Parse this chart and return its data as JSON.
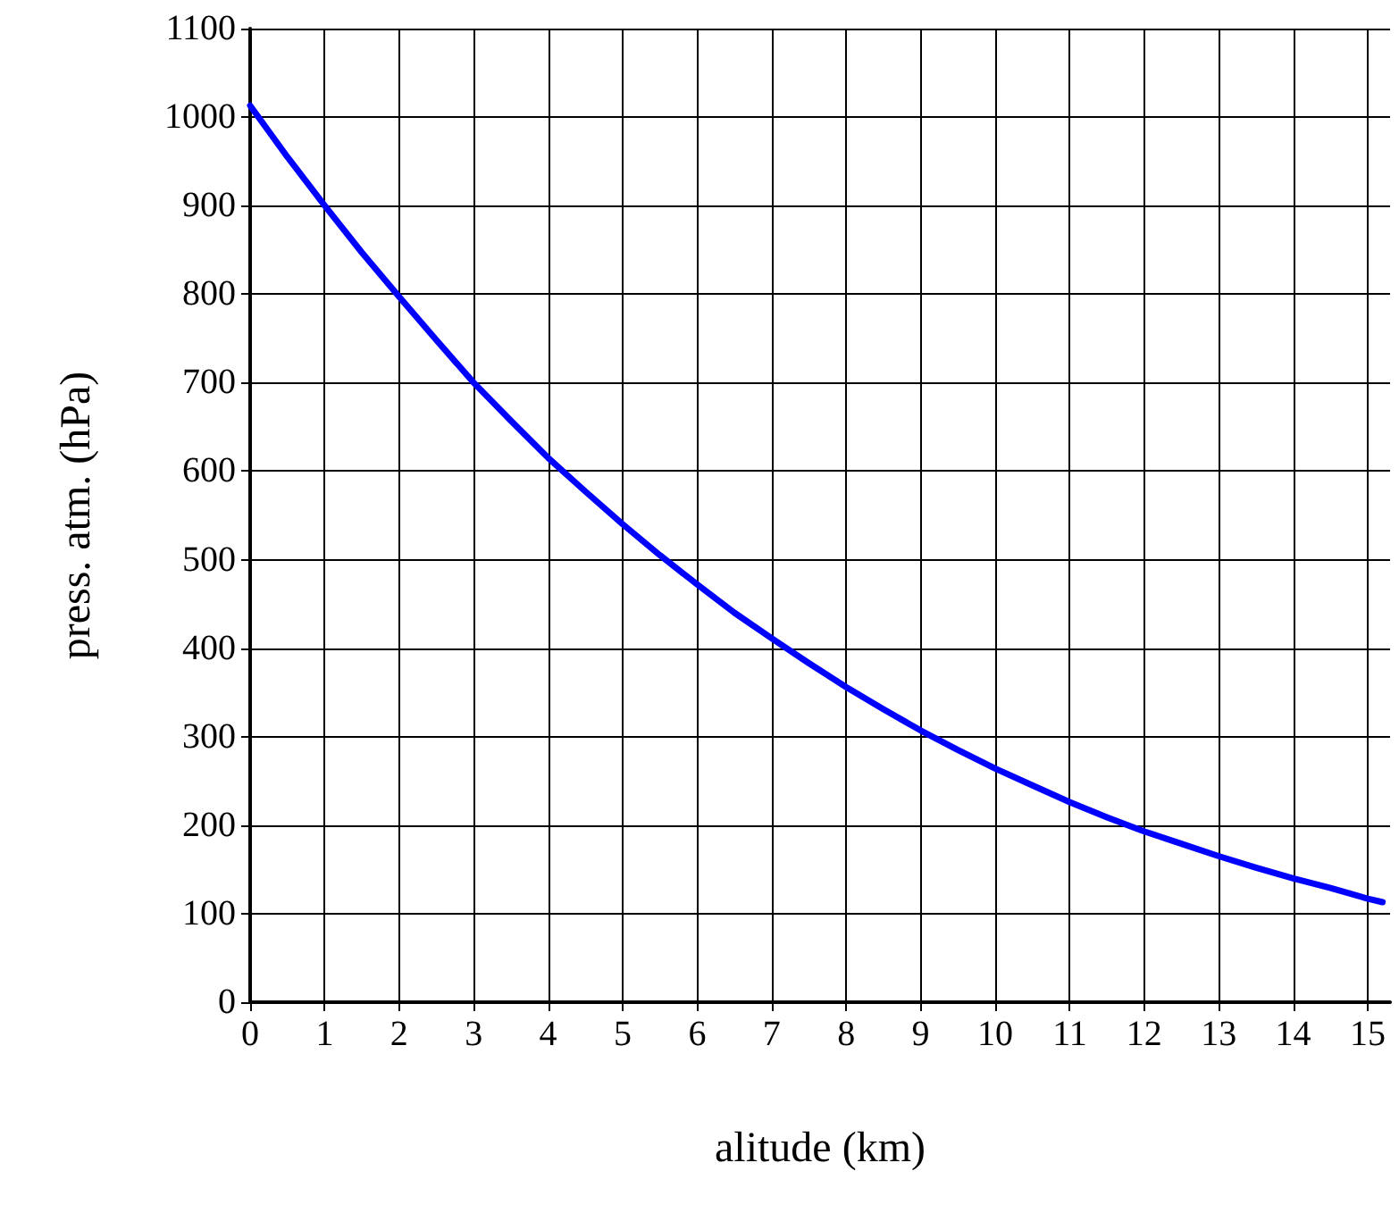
{
  "chart_data": {
    "type": "line",
    "xlabel": "alitude (km)",
    "ylabel": "press. atm. (hPa)",
    "x": [
      0,
      0.5,
      1,
      1.5,
      2,
      2.5,
      3,
      3.5,
      4,
      4.5,
      5,
      5.5,
      6,
      6.5,
      7,
      7.5,
      8,
      8.5,
      9,
      9.5,
      10,
      10.5,
      11,
      11.5,
      12,
      12.5,
      13,
      13.5,
      14,
      14.5,
      15,
      15.2
    ],
    "series": [
      {
        "color": "#0000ff",
        "values": [
          1013,
          955,
          900,
          847,
          797,
          748,
          700,
          657,
          615,
          577,
          540,
          505,
          472,
          440,
          411,
          383,
          356,
          331,
          307,
          285,
          264,
          245,
          226,
          209,
          193,
          179,
          165,
          152,
          140,
          129,
          117,
          113
        ]
      }
    ],
    "xlim": [
      0,
      15.3
    ],
    "ylim": [
      0,
      1100
    ],
    "xticks": [
      0,
      1,
      2,
      3,
      4,
      5,
      6,
      7,
      8,
      9,
      10,
      11,
      12,
      13,
      14,
      15
    ],
    "yticks": [
      0,
      100,
      200,
      300,
      400,
      500,
      600,
      700,
      800,
      900,
      1000,
      1100
    ],
    "grid": true,
    "marker": "none",
    "line_style": "solid"
  }
}
